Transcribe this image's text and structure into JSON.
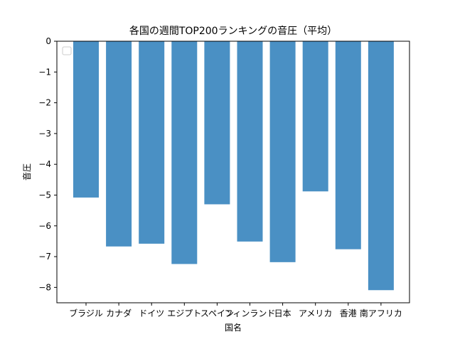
{
  "chart_data": {
    "type": "bar",
    "title": "各国の週間TOP200ランキングの音圧（平均）",
    "xlabel": "国名",
    "ylabel": "音圧",
    "categories": [
      "ブラジル",
      "カナダ",
      "ドイツ",
      "エジプト",
      "スペイン",
      "フィンランド",
      "日本",
      "アメリカ",
      "香港",
      "南アフリカ"
    ],
    "values": [
      -5.08,
      -6.67,
      -6.58,
      -7.24,
      -5.3,
      -6.51,
      -7.18,
      -4.88,
      -6.76,
      -8.09
    ],
    "ylim": [
      -8.5,
      0
    ],
    "yticks": [
      0,
      -1,
      -2,
      -3,
      -4,
      -5,
      -6,
      -7,
      -8
    ],
    "ytick_labels": [
      "0",
      "−1",
      "−2",
      "−3",
      "−4",
      "−5",
      "−6",
      "−7",
      "−8"
    ],
    "bar_color": "#4a90c4",
    "grid": false,
    "legend": "top-left, empty"
  }
}
